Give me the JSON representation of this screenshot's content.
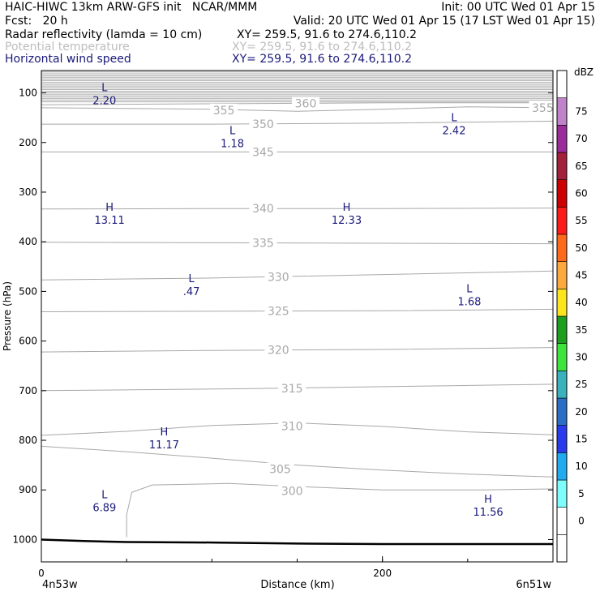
{
  "header": {
    "line1_left": "HAIC-HIWC 13km ARW-GFS init   NCAR/MMM",
    "line1_right": "Init: 00 UTC Wed 01 Apr 15",
    "line2_left": "Fcst:   20 h",
    "line2_right": "Valid: 20 UTC Wed 01 Apr 15 (17 LST Wed 01 Apr 15)",
    "fields": [
      {
        "name": "Radar reflectivity (lamda = 10 cm)",
        "xy": "XY= 259.5, 91.6 to 274.6,110.2"
      },
      {
        "name": "Potential temperature",
        "xy": "XY= 259.5, 91.6 to 274.6,110.2"
      },
      {
        "name": "Horizontal wind speed",
        "xy": "XY= 259.5, 91.6 to 274.6,110.2"
      }
    ]
  },
  "colors": {
    "field_dark": "#000000",
    "field_gray": "#bdbdbd",
    "field_blue": "#1a1a7a",
    "contour": "#a8a8a8",
    "terrain": "#000000"
  },
  "chart_data": {
    "type": "contour-cross-section",
    "xlabel": "Distance (km)",
    "ylabel": "Pressure (hPa)",
    "x_ticks": [
      0,
      200
    ],
    "y_ticks": [
      100,
      200,
      300,
      400,
      500,
      600,
      700,
      800,
      900,
      1000
    ],
    "xlim": [
      0,
      300
    ],
    "ylim": [
      1045,
      55
    ],
    "x_end_labels": {
      "left": "4n53w",
      "right": "6n51w"
    },
    "theta_contours": [
      {
        "value": 300,
        "label": "300",
        "points": [
          [
            50,
            995
          ],
          [
            50,
            950
          ],
          [
            53,
            905
          ],
          [
            65,
            890
          ],
          [
            110,
            887
          ],
          [
            150,
            893
          ],
          [
            200,
            900
          ],
          [
            260,
            900
          ],
          [
            300,
            898
          ]
        ]
      },
      {
        "value": 305,
        "label": "305",
        "points": [
          [
            0,
            812
          ],
          [
            50,
            823
          ],
          [
            100,
            836
          ],
          [
            150,
            850
          ],
          [
            200,
            860
          ],
          [
            250,
            868
          ],
          [
            300,
            874
          ]
        ]
      },
      {
        "value": 310,
        "label": "310",
        "points": [
          [
            0,
            790
          ],
          [
            50,
            782
          ],
          [
            100,
            770
          ],
          [
            150,
            765
          ],
          [
            200,
            772
          ],
          [
            250,
            783
          ],
          [
            300,
            789
          ]
        ]
      },
      {
        "value": 315,
        "label": "315",
        "points": [
          [
            0,
            700
          ],
          [
            60,
            698
          ],
          [
            120,
            696
          ],
          [
            180,
            693
          ],
          [
            240,
            690
          ],
          [
            300,
            687
          ]
        ]
      },
      {
        "value": 320,
        "label": "320",
        "points": [
          [
            0,
            622
          ],
          [
            100,
            619
          ],
          [
            200,
            617
          ],
          [
            300,
            613
          ]
        ]
      },
      {
        "value": 325,
        "label": "325",
        "points": [
          [
            0,
            541
          ],
          [
            100,
            540
          ],
          [
            200,
            539
          ],
          [
            300,
            536
          ]
        ]
      },
      {
        "value": 330,
        "label": "330",
        "points": [
          [
            0,
            477
          ],
          [
            100,
            473
          ],
          [
            200,
            466
          ],
          [
            300,
            459
          ]
        ]
      },
      {
        "value": 335,
        "label": "335",
        "points": [
          [
            0,
            401
          ],
          [
            100,
            402
          ],
          [
            200,
            403
          ],
          [
            300,
            404
          ]
        ]
      },
      {
        "value": 340,
        "label": "340",
        "points": [
          [
            0,
            334
          ],
          [
            100,
            333
          ],
          [
            200,
            333
          ],
          [
            300,
            332
          ]
        ]
      },
      {
        "value": 345,
        "label": "345",
        "points": [
          [
            0,
            219
          ],
          [
            100,
            219
          ],
          [
            200,
            219
          ],
          [
            300,
            219
          ]
        ]
      },
      {
        "value": 350,
        "label": "350",
        "points": [
          [
            0,
            163
          ],
          [
            100,
            163
          ],
          [
            200,
            161
          ],
          [
            300,
            157
          ]
        ]
      },
      {
        "value": 355,
        "label": "355",
        "points": [
          [
            0,
            130
          ],
          [
            100,
            133
          ],
          [
            150,
            137
          ],
          [
            200,
            133
          ],
          [
            250,
            128
          ],
          [
            300,
            130
          ]
        ]
      },
      {
        "value": 360,
        "label": "360",
        "points": [
          [
            0,
            124
          ],
          [
            100,
            122
          ],
          [
            150,
            121
          ],
          [
            200,
            120
          ],
          [
            300,
            120
          ]
        ]
      }
    ],
    "theta_label_positions": [
      {
        "label": "300",
        "x": 147,
        "p": 902
      },
      {
        "label": "305",
        "x": 140,
        "p": 858
      },
      {
        "label": "310",
        "x": 147,
        "p": 771
      },
      {
        "label": "315",
        "x": 147,
        "p": 695
      },
      {
        "label": "320",
        "x": 139,
        "p": 618
      },
      {
        "label": "325",
        "x": 139,
        "p": 539
      },
      {
        "label": "330",
        "x": 139,
        "p": 471
      },
      {
        "label": "335",
        "x": 130,
        "p": 402
      },
      {
        "label": "340",
        "x": 130,
        "p": 333
      },
      {
        "label": "345",
        "x": 130,
        "p": 219
      },
      {
        "label": "350",
        "x": 130,
        "p": 163
      },
      {
        "label": "355",
        "x": 107,
        "p": 135
      },
      {
        "label": "355",
        "x": 294,
        "p": 130
      },
      {
        "label": "360",
        "x": 155,
        "p": 121
      }
    ],
    "upper_stacked_lines": {
      "p_from": 58,
      "p_to": 118,
      "count": 18
    },
    "terrain": [
      [
        0,
        1000
      ],
      [
        25,
        1003
      ],
      [
        50,
        1005
      ],
      [
        100,
        1006
      ],
      [
        150,
        1008
      ],
      [
        200,
        1009
      ],
      [
        300,
        1009
      ]
    ],
    "wind_extrema": [
      {
        "type": "L",
        "value": "2.20",
        "x": 37,
        "p": 97
      },
      {
        "type": "L",
        "value": "2.42",
        "x": 242,
        "p": 157
      },
      {
        "type": "L",
        "value": "1.18",
        "x": 112,
        "p": 183
      },
      {
        "type": "H",
        "value": "13.11",
        "x": 40,
        "p": 338
      },
      {
        "type": "H",
        "value": "12.33",
        "x": 179,
        "p": 338
      },
      {
        "type": "L",
        "value": ".47",
        "x": 88,
        "p": 481
      },
      {
        "type": "L",
        "value": "1.68",
        "x": 251,
        "p": 502
      },
      {
        "type": "H",
        "value": "11.17",
        "x": 72,
        "p": 790
      },
      {
        "type": "L",
        "value": "6.89",
        "x": 37,
        "p": 917
      },
      {
        "type": "H",
        "value": "11.56",
        "x": 262,
        "p": 926
      }
    ],
    "colorbar": {
      "unit": "dBZ",
      "labels": [
        "0",
        "5",
        "10",
        "15",
        "20",
        "25",
        "30",
        "35",
        "40",
        "45",
        "50",
        "55",
        "60",
        "65",
        "70",
        "75"
      ],
      "bands": [
        {
          "color": "#ffffff"
        },
        {
          "color": "#ffffff"
        },
        {
          "color": "#7ffdfd"
        },
        {
          "color": "#22aaee"
        },
        {
          "color": "#2a3bee"
        },
        {
          "color": "#2a6fc4"
        },
        {
          "color": "#3bb1bb"
        },
        {
          "color": "#3ee33e"
        },
        {
          "color": "#1e9e1e"
        },
        {
          "color": "#fde51e"
        },
        {
          "color": "#fda83c"
        },
        {
          "color": "#fd6a1a"
        },
        {
          "color": "#fd1a1a"
        },
        {
          "color": "#cc0000"
        },
        {
          "color": "#a3213b"
        },
        {
          "color": "#9a2d9a"
        },
        {
          "color": "#c082c8"
        },
        {
          "color": "#ffffff"
        }
      ]
    }
  }
}
